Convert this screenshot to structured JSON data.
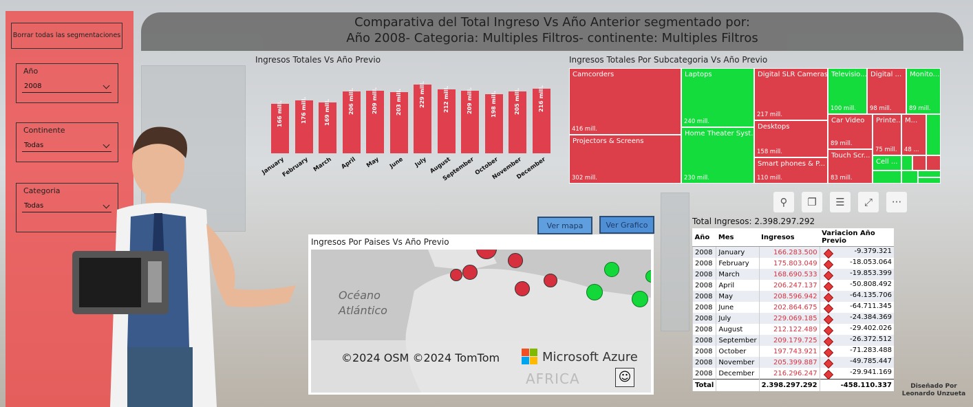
{
  "header": {
    "line1": "Comparativa del Total Ingreso Vs Año Anterior segmentado por:",
    "line2": "Año 2008- Categoria:  Multiples Filtros- continente:  Multiples Filtros"
  },
  "filters": {
    "clear_label": "Borrar todas las segmentaciones",
    "slicers": [
      {
        "label": "Año",
        "value": "2008"
      },
      {
        "label": "Continente",
        "value": "Todas"
      },
      {
        "label": "Categoria",
        "value": "Todas"
      }
    ]
  },
  "chart_data": {
    "type": "bar",
    "title": "Ingresos Totales Vs Año Previo",
    "categories": [
      "January",
      "February",
      "March",
      "April",
      "May",
      "June",
      "July",
      "August",
      "September",
      "October",
      "November",
      "December"
    ],
    "values": [
      166,
      176,
      169,
      206,
      209,
      203,
      229,
      212,
      209,
      198,
      205,
      216
    ],
    "data_labels": [
      "166 mill.",
      "176 mill.",
      "169 mill.",
      "206 mill.",
      "209 mill.",
      "203 mill.",
      "229 mill.",
      "212 mill.",
      "209 mill.",
      "198 mill.",
      "205 mill.",
      "216 mill."
    ],
    "color": "#e0404e"
  },
  "treemap": {
    "title": "Ingresos Totales Por Subcategoria Vs Año Previo",
    "tiles": [
      {
        "name": "Camcorders",
        "value": "416 mill.",
        "color": "red"
      },
      {
        "name": "Projectors & Screens",
        "value": "302 mill.",
        "color": "red"
      },
      {
        "name": "Laptops",
        "value": "240 mill.",
        "color": "green"
      },
      {
        "name": "Home Theater Syst...",
        "value": "230 mill.",
        "color": "green"
      },
      {
        "name": "Digital SLR Cameras",
        "value": "217 mill.",
        "color": "red"
      },
      {
        "name": "Desktops",
        "value": "158 mill.",
        "color": "red"
      },
      {
        "name": "Smart phones & P...",
        "value": "110 mill.",
        "color": "red"
      },
      {
        "name": "Televisio...",
        "value": "100 mill.",
        "color": "green"
      },
      {
        "name": "Digital ...",
        "value": "98 mill.",
        "color": "red"
      },
      {
        "name": "Monito...",
        "value": "89 mill.",
        "color": "green"
      },
      {
        "name": "Car Video",
        "value": "89 mill.",
        "color": "red"
      },
      {
        "name": "Printe...",
        "value": "75 mill.",
        "color": "red"
      },
      {
        "name": "M...",
        "value": "48 ...",
        "color": "red"
      },
      {
        "name": "Touch Scr...",
        "value": "83 mill.",
        "color": "red"
      },
      {
        "name": "Cell ...",
        "value": "",
        "color": "green"
      }
    ]
  },
  "map": {
    "buttons": {
      "map": "Ver mapa",
      "chart": "Ver Grafico"
    },
    "title": "Ingresos Por Paises Vs Año Previo",
    "ocean_label": "Océano\nAtlántico",
    "copyright": "©2024 OSM  ©2024 TomTom",
    "provider": "Microsoft Azure",
    "region_label": "AFRICA"
  },
  "table": {
    "total_label": "Total Ingresos: 2.398.297.292",
    "headers": [
      "Año",
      "Mes",
      "Ingresos",
      "Variacion Año Previo"
    ],
    "rows": [
      [
        "2008",
        "January",
        "166.283.500",
        "-9.379.321"
      ],
      [
        "2008",
        "February",
        "175.803.049",
        "-18.053.064"
      ],
      [
        "2008",
        "March",
        "168.690.533",
        "-19.853.399"
      ],
      [
        "2008",
        "April",
        "206.247.137",
        "-50.808.492"
      ],
      [
        "2008",
        "May",
        "208.596.942",
        "-64.135.706"
      ],
      [
        "2008",
        "June",
        "202.864.675",
        "-64.711.345"
      ],
      [
        "2008",
        "July",
        "229.069.185",
        "-24.384.369"
      ],
      [
        "2008",
        "August",
        "212.122.489",
        "-29.402.026"
      ],
      [
        "2008",
        "September",
        "209.179.725",
        "-26.372.512"
      ],
      [
        "2008",
        "October",
        "197.743.921",
        "-71.283.488"
      ],
      [
        "2008",
        "November",
        "205.399.887",
        "-49.785.447"
      ],
      [
        "2008",
        "December",
        "216.296.247",
        "-29.941.169"
      ]
    ],
    "footer": [
      "Total",
      "",
      "2.398.297.292",
      "-458.110.337"
    ]
  },
  "credit": {
    "line1": "Diseñado Por",
    "line2": "Leonardo Unzueta"
  },
  "colors": {
    "accent_red": "#e0404e",
    "accent_green": "#14dc3c",
    "header_gray": "#707070"
  }
}
